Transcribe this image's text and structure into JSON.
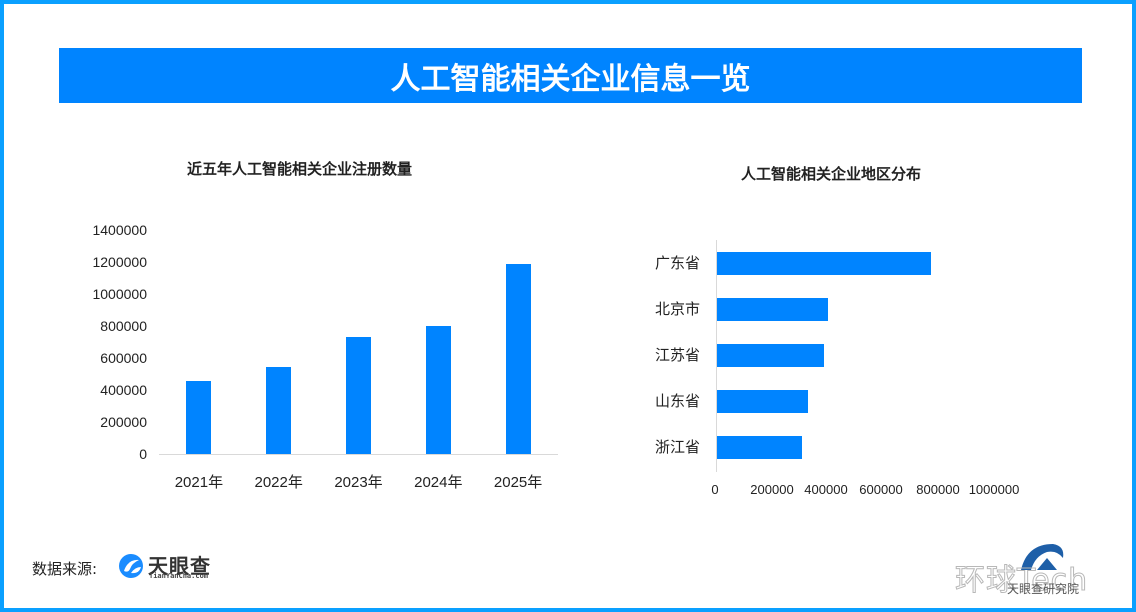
{
  "header": {
    "title": "人工智能相关企业信息一览"
  },
  "colors": {
    "frame": "#0AA0FF",
    "banner": "#0084FF",
    "bar": "#0084FF",
    "axis": "#D9D9D9",
    "text": "#222222"
  },
  "left_chart": {
    "title": "近五年人工智能相关企业注册数量",
    "y_ticks": [
      "1400000",
      "1200000",
      "1000000",
      "800000",
      "600000",
      "400000",
      "200000",
      "0"
    ],
    "categories": [
      "2021年",
      "2022年",
      "2023年",
      "2024年",
      "2025年"
    ]
  },
  "right_chart": {
    "title": "人工智能相关企业地区分布",
    "categories": [
      "广东省",
      "北京市",
      "江苏省",
      "山东省",
      "浙江省"
    ],
    "x_ticks": [
      "0",
      "200000",
      "400000",
      "600000",
      "800000",
      "1000000"
    ]
  },
  "footer": {
    "source_label": "数据来源:",
    "logo_name": "天眼查",
    "logo_url": "TianYanCha.com",
    "watermark_text": "环球Tech",
    "watermark_sub": "天眼查研究院"
  },
  "chart_data": [
    {
      "type": "bar",
      "title": "近五年人工智能相关企业注册数量",
      "orientation": "vertical",
      "categories": [
        "2021年",
        "2022年",
        "2023年",
        "2024年",
        "2025年"
      ],
      "values": [
        456000,
        544000,
        731000,
        800000,
        1190000
      ],
      "xlabel": "",
      "ylabel": "",
      "ylim": [
        0,
        1400000
      ],
      "y_ticks": [
        0,
        200000,
        400000,
        600000,
        800000,
        1000000,
        1200000,
        1400000
      ],
      "grid": false,
      "legend": "none"
    },
    {
      "type": "bar",
      "title": "人工智能相关企业地区分布",
      "orientation": "horizontal",
      "categories": [
        "广东省",
        "北京市",
        "江苏省",
        "山东省",
        "浙江省"
      ],
      "values": [
        771000,
        400000,
        386000,
        329000,
        307000
      ],
      "xlabel": "",
      "ylabel": "",
      "xlim": [
        0,
        1000000
      ],
      "x_ticks": [
        0,
        200000,
        400000,
        600000,
        800000,
        1000000
      ],
      "grid": false,
      "legend": "none"
    }
  ]
}
